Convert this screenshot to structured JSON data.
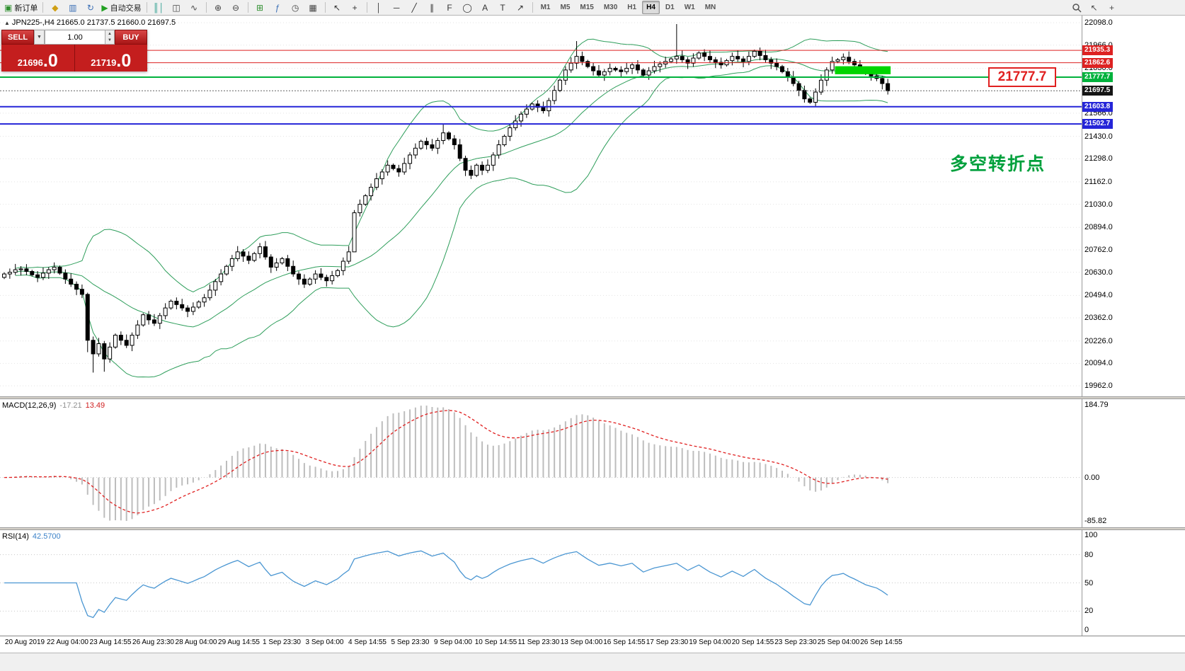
{
  "toolbar": {
    "groups": [
      {
        "name": "trade",
        "items": [
          {
            "name": "new-order",
            "glyph": "▣",
            "color": "#2f8f2f",
            "label": "新订单"
          }
        ]
      },
      {
        "name": "standard",
        "items": [
          {
            "name": "chart-profiles",
            "glyph": "◆",
            "color": "#cf9f15"
          },
          {
            "name": "market-watch",
            "glyph": "▥",
            "color": "#3b6fb5"
          },
          {
            "name": "refresh",
            "glyph": "↻",
            "color": "#3b6fb5"
          },
          {
            "name": "autotrading",
            "glyph": "▶",
            "color": "#22a022",
            "label": "自动交易"
          }
        ]
      },
      {
        "name": "chart-type",
        "items": [
          {
            "name": "bar-chart",
            "glyph": "║│",
            "color": "#2a9d8f"
          },
          {
            "name": "candlestick-chart",
            "glyph": "◫",
            "color": "#444444"
          },
          {
            "name": "line-chart",
            "glyph": "∿",
            "color": "#444444"
          }
        ]
      },
      {
        "name": "zoom",
        "items": [
          {
            "name": "zoom-in",
            "glyph": "⊕",
            "color": "#444444"
          },
          {
            "name": "zoom-out",
            "glyph": "⊖",
            "color": "#444444"
          }
        ]
      },
      {
        "name": "windows",
        "items": [
          {
            "name": "tile-windows",
            "glyph": "⊞",
            "color": "#2f8f2f"
          },
          {
            "name": "indicators",
            "glyph": "ƒ",
            "color": "#3b6fb5"
          },
          {
            "name": "periods",
            "glyph": "◷",
            "color": "#444444"
          },
          {
            "name": "templates",
            "glyph": "▦",
            "color": "#444444"
          }
        ]
      },
      {
        "name": "cursor",
        "items": [
          {
            "name": "pointer-tool",
            "glyph": "↖",
            "color": "#333333"
          },
          {
            "name": "crosshair-tool",
            "glyph": "+",
            "color": "#333333"
          }
        ]
      },
      {
        "name": "objects",
        "items": [
          {
            "name": "vertical-line",
            "glyph": "│",
            "color": "#333333"
          },
          {
            "name": "horizontal-line",
            "glyph": "─",
            "color": "#333333"
          },
          {
            "name": "trendline",
            "glyph": "╱",
            "color": "#333333"
          },
          {
            "name": "equidistant-channel",
            "glyph": "∥",
            "color": "#333333"
          },
          {
            "name": "fibonacci",
            "glyph": "F",
            "color": "#333333"
          },
          {
            "name": "ellipse",
            "glyph": "◯",
            "color": "#333333"
          },
          {
            "name": "text",
            "glyph": "A",
            "color": "#333333"
          },
          {
            "name": "label",
            "glyph": "T",
            "color": "#333333"
          },
          {
            "name": "arrows",
            "glyph": "↗",
            "color": "#333333"
          }
        ]
      }
    ],
    "timeframes": [
      "M1",
      "M5",
      "M15",
      "M30",
      "H1",
      "H4",
      "D1",
      "W1",
      "MN"
    ],
    "active_timeframe": "H4",
    "right_items": [
      {
        "name": "search",
        "glyph": "magnifier"
      },
      {
        "name": "pointer-a",
        "glyph": "↖"
      },
      {
        "name": "pointer-b",
        "glyph": "+"
      }
    ]
  },
  "symbol_bar": {
    "toggle": "▲",
    "text": "JPN225-,H4  21665.0 21737.5 21660.0 21697.5"
  },
  "one_click": {
    "sell_label": "SELL",
    "buy_label": "BUY",
    "volume": "1.00",
    "dropdown_glyph": "▼",
    "step_up_glyph": "▲",
    "step_down_glyph": "▼",
    "sell_price_int": "21696",
    "sell_price_frac": ".0",
    "buy_price_int": "21719",
    "buy_price_frac": ".0"
  },
  "chart_data": {
    "type": "candlestick",
    "symbol": "JPN225-",
    "timeframe": "H4",
    "price_axis_labels": [
      "22098.0",
      "21966.0",
      "21830.0",
      "21698.0",
      "21566.0",
      "21430.0",
      "21298.0",
      "21162.0",
      "21030.0",
      "20894.0",
      "20762.0",
      "20630.0",
      "20494.0",
      "20362.0",
      "20226.0",
      "20094.0",
      "19962.0"
    ],
    "first_open": 20600,
    "closes": [
      20620,
      20630,
      20645,
      20650,
      20635,
      20615,
      20600,
      20625,
      20645,
      20660,
      20625,
      20590,
      20560,
      20530,
      20500,
      20230,
      20150,
      20210,
      20120,
      20190,
      20260,
      20230,
      20200,
      20260,
      20320,
      20380,
      20350,
      20330,
      20375,
      20420,
      20460,
      20440,
      20420,
      20400,
      20425,
      20455,
      20480,
      20525,
      20575,
      20620,
      20665,
      20710,
      20750,
      20725,
      20700,
      20740,
      20780,
      20720,
      20660,
      20685,
      20710,
      20665,
      20620,
      20590,
      20560,
      20590,
      20620,
      20600,
      20580,
      20610,
      20640,
      20695,
      20750,
      20980,
      21030,
      21080,
      21130,
      21180,
      21220,
      21260,
      21240,
      21220,
      21270,
      21320,
      21360,
      21400,
      21380,
      21360,
      21405,
      21450,
      21415,
      21380,
      21300,
      21230,
      21200,
      21260,
      21230,
      21260,
      21320,
      21380,
      21430,
      21480,
      21520,
      21560,
      21590,
      21620,
      21600,
      21580,
      21640,
      21700,
      21760,
      21820,
      21860,
      21900,
      21870,
      21840,
      21815,
      21790,
      21810,
      21830,
      21820,
      21810,
      21830,
      21850,
      21820,
      21790,
      21815,
      21840,
      21855,
      21870,
      21885,
      21900,
      21880,
      21860,
      21890,
      21920,
      21900,
      21880,
      21865,
      21850,
      21875,
      21900,
      21885,
      21870,
      21900,
      21930,
      21905,
      21880,
      21860,
      21840,
      21810,
      21780,
      21740,
      21700,
      21650,
      21630,
      21690,
      21760,
      21820,
      21870,
      21880,
      21895,
      21870,
      21850,
      21825,
      21800,
      21785,
      21770,
      21740,
      21697.5
    ],
    "wick_overrides": {
      "15": {
        "low": 20160
      },
      "16": {
        "low": 20040
      },
      "18": {
        "low": 20045
      },
      "63": {
        "low": 20770
      },
      "79": {
        "high": 21500
      },
      "103": {
        "high": 21990
      },
      "121": {
        "high": 22090
      }
    },
    "indicators": {
      "bollinger": {
        "period": 20,
        "deviation": 2,
        "color": "#2e9e5b"
      },
      "macd": {
        "label": "MACD(12,26,9)",
        "main": "-17.21",
        "signal": "13.49",
        "axis_max": "184.79",
        "axis_zero": "0.00",
        "axis_min": "-85.82",
        "histogram_color": "#bdbdbd",
        "signal_color": "#e02020"
      },
      "rsi": {
        "label": "RSI(14)",
        "value": "42.5700",
        "levels": [
          80,
          50,
          20
        ],
        "axis_top": "100",
        "axis_bottom": "0",
        "line_color": "#4a96d2"
      }
    },
    "objects": {
      "hlines": [
        {
          "price": 21935.3,
          "label": "21935.3",
          "color": "#dd2222",
          "width": 1
        },
        {
          "price": 21862.6,
          "label": "21862.6",
          "color": "#dd2222",
          "width": 1
        },
        {
          "price": 21777.7,
          "label": "21777.7",
          "color": "#00b23c",
          "width": 2
        },
        {
          "price": 21603.8,
          "label": "21603.8",
          "color": "#2525d8",
          "width": 2
        },
        {
          "price": 21502.7,
          "label": "21502.7",
          "color": "#2525d8",
          "width": 2
        }
      ],
      "bid": {
        "price": 21697.5,
        "label": "21697.5",
        "tag_color": "#151515"
      },
      "highlight_rect": {
        "from_index": 150,
        "to_index": 159,
        "price_top": 21842,
        "price_bottom": 21795,
        "color": "#00d500"
      },
      "big_price_label": "21777.7",
      "annotation_text": "多空转折点"
    },
    "time_axis_labels": [
      "20 Aug 2019",
      "22 Aug 04:00",
      "23 Aug 14:55",
      "26 Aug 23:30",
      "28 Aug 04:00",
      "29 Aug 14:55",
      "1 Sep 23:30",
      "3 Sep 04:00",
      "4 Sep 14:55",
      "5 Sep 23:30",
      "9 Sep 04:00",
      "10 Sep 14:55",
      "11 Sep 23:30",
      "13 Sep 04:00",
      "16 Sep 14:55",
      "17 Sep 23:30",
      "19 Sep 04:00",
      "20 Sep 14:55",
      "23 Sep 23:30",
      "25 Sep 04:00",
      "26 Sep 14:55"
    ]
  }
}
